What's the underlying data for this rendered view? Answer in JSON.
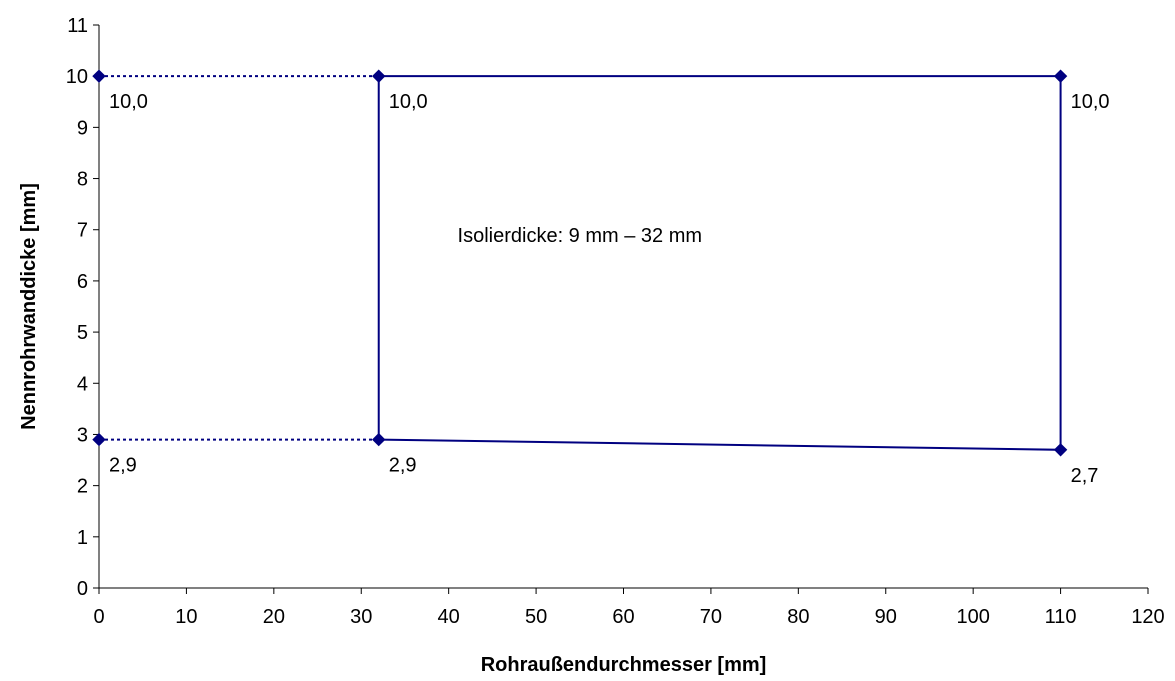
{
  "chart_data": {
    "type": "line",
    "title": "",
    "xlabel": "Rohraußendurchmesser [mm]",
    "ylabel": "Nennrohrwanddicke [mm]",
    "xlim": [
      0,
      120
    ],
    "ylim": [
      0,
      11
    ],
    "xticks": [
      0,
      10,
      20,
      30,
      40,
      50,
      60,
      70,
      80,
      90,
      100,
      110,
      120
    ],
    "yticks": [
      0,
      1,
      2,
      3,
      4,
      5,
      6,
      7,
      8,
      9,
      10,
      11
    ],
    "grid": false,
    "legend": "none",
    "series": [
      {
        "style": "solid",
        "color": "#000080",
        "marker": "diamond",
        "points": [
          [
            32,
            2.9
          ],
          [
            32,
            10.0
          ],
          [
            110,
            10.0
          ],
          [
            110,
            2.7
          ],
          [
            32,
            2.9
          ]
        ]
      },
      {
        "style": "dotted",
        "color": "#000080",
        "marker": "diamond",
        "points": [
          [
            0,
            10.0
          ],
          [
            32,
            10.0
          ]
        ]
      },
      {
        "style": "dotted",
        "color": "#000080",
        "marker": "diamond",
        "points": [
          [
            0,
            2.9
          ],
          [
            32,
            2.9
          ]
        ]
      }
    ],
    "data_labels": [
      {
        "x": 0,
        "y": 10.0,
        "text": "10,0"
      },
      {
        "x": 32,
        "y": 10.0,
        "text": "10,0"
      },
      {
        "x": 110,
        "y": 10.0,
        "text": "10,0"
      },
      {
        "x": 0,
        "y": 2.9,
        "text": "2,9"
      },
      {
        "x": 32,
        "y": 2.9,
        "text": "2,9"
      },
      {
        "x": 110,
        "y": 2.7,
        "text": "2,7"
      }
    ],
    "annotations": [
      {
        "x": 55,
        "y": 6.9,
        "text": "Isolierdicke: 9 mm – 32 mm"
      }
    ]
  }
}
